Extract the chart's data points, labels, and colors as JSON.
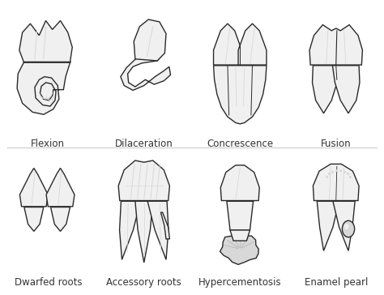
{
  "background_color": "#ffffff",
  "labels_row1": [
    "Flexion",
    "Dilaceration",
    "Concrescence",
    "Fusion"
  ],
  "labels_row2": [
    "Dwarfed roots",
    "Accessory roots",
    "Hypercementosis",
    "Enamel pearl"
  ],
  "label_fontsize": 8.5,
  "label_color": "#333333",
  "outline_color": "#2a2a2a",
  "fill_light": "#f0f0f0",
  "fill_mid": "#d8d8d8",
  "fill_dark": "#b8b8b8",
  "fig_width": 4.74,
  "fig_height": 3.64,
  "dpi": 100,
  "lw": 1.0
}
